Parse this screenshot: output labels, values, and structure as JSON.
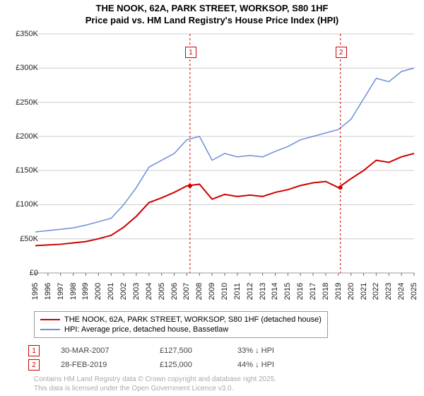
{
  "title": {
    "line1": "THE NOOK, 62A, PARK STREET, WORKSOP, S80 1HF",
    "line2": "Price paid vs. HM Land Registry's House Price Index (HPI)",
    "fontsize": 13
  },
  "chart": {
    "type": "line",
    "background_color": "#ffffff",
    "grid_color": "#cccccc",
    "ylim": [
      0,
      350000
    ],
    "ytick_step": 50000,
    "yticks": [
      "£0",
      "£50K",
      "£100K",
      "£150K",
      "£200K",
      "£250K",
      "£300K",
      "£350K"
    ],
    "xlim": [
      1995,
      2025
    ],
    "xticks": [
      1995,
      1996,
      1997,
      1998,
      1999,
      2000,
      2001,
      2002,
      2003,
      2004,
      2005,
      2006,
      2007,
      2008,
      2009,
      2010,
      2011,
      2012,
      2013,
      2014,
      2015,
      2016,
      2017,
      2018,
      2019,
      2020,
      2021,
      2022,
      2023,
      2024,
      2025
    ],
    "series": [
      {
        "name": "hpi",
        "label": "HPI: Average price, detached house, Bassetlaw",
        "color": "#6a8fd8",
        "width": 1.5,
        "points": [
          [
            1995,
            60000
          ],
          [
            1996,
            62000
          ],
          [
            1997,
            64000
          ],
          [
            1998,
            66000
          ],
          [
            1999,
            70000
          ],
          [
            2000,
            75000
          ],
          [
            2001,
            80000
          ],
          [
            2002,
            100000
          ],
          [
            2003,
            125000
          ],
          [
            2004,
            155000
          ],
          [
            2005,
            165000
          ],
          [
            2006,
            175000
          ],
          [
            2007,
            195000
          ],
          [
            2008,
            200000
          ],
          [
            2009,
            165000
          ],
          [
            2010,
            175000
          ],
          [
            2011,
            170000
          ],
          [
            2012,
            172000
          ],
          [
            2013,
            170000
          ],
          [
            2014,
            178000
          ],
          [
            2015,
            185000
          ],
          [
            2016,
            195000
          ],
          [
            2017,
            200000
          ],
          [
            2018,
            205000
          ],
          [
            2019,
            210000
          ],
          [
            2020,
            225000
          ],
          [
            2021,
            255000
          ],
          [
            2022,
            285000
          ],
          [
            2023,
            280000
          ],
          [
            2024,
            295000
          ],
          [
            2025,
            300000
          ]
        ]
      },
      {
        "name": "nook",
        "label": "THE NOOK, 62A, PARK STREET, WORKSOP, S80 1HF (detached house)",
        "color": "#d00000",
        "width": 2,
        "points": [
          [
            1995,
            40000
          ],
          [
            1996,
            41000
          ],
          [
            1997,
            42000
          ],
          [
            1998,
            44000
          ],
          [
            1999,
            46000
          ],
          [
            2000,
            50000
          ],
          [
            2001,
            55000
          ],
          [
            2002,
            67000
          ],
          [
            2003,
            83000
          ],
          [
            2004,
            103000
          ],
          [
            2005,
            110000
          ],
          [
            2006,
            118000
          ],
          [
            2007,
            127500
          ],
          [
            2008,
            130000
          ],
          [
            2009,
            108000
          ],
          [
            2010,
            115000
          ],
          [
            2011,
            112000
          ],
          [
            2012,
            114000
          ],
          [
            2013,
            112000
          ],
          [
            2014,
            118000
          ],
          [
            2015,
            122000
          ],
          [
            2016,
            128000
          ],
          [
            2017,
            132000
          ],
          [
            2018,
            134000
          ],
          [
            2019,
            125000
          ],
          [
            2020,
            138000
          ],
          [
            2021,
            150000
          ],
          [
            2022,
            165000
          ],
          [
            2023,
            162000
          ],
          [
            2024,
            170000
          ],
          [
            2025,
            175000
          ]
        ]
      }
    ],
    "markers": [
      {
        "num": "1",
        "x": 2007.25,
        "y": 127500
      },
      {
        "num": "2",
        "x": 2019.16,
        "y": 125000
      }
    ]
  },
  "legend": {
    "items": [
      {
        "color": "#d00000",
        "label": "THE NOOK, 62A, PARK STREET, WORKSOP, S80 1HF (detached house)",
        "width": 2
      },
      {
        "color": "#6a8fd8",
        "label": "HPI: Average price, detached house, Bassetlaw",
        "width": 1.5
      }
    ]
  },
  "marker_table": [
    {
      "num": "1",
      "date": "30-MAR-2007",
      "price": "£127,500",
      "hpi": "33% ↓ HPI"
    },
    {
      "num": "2",
      "date": "28-FEB-2019",
      "price": "£125,000",
      "hpi": "44% ↓ HPI"
    }
  ],
  "footer": {
    "line1": "Contains HM Land Registry data © Crown copyright and database right 2025.",
    "line2": "This data is licensed under the Open Government Licence v3.0."
  }
}
